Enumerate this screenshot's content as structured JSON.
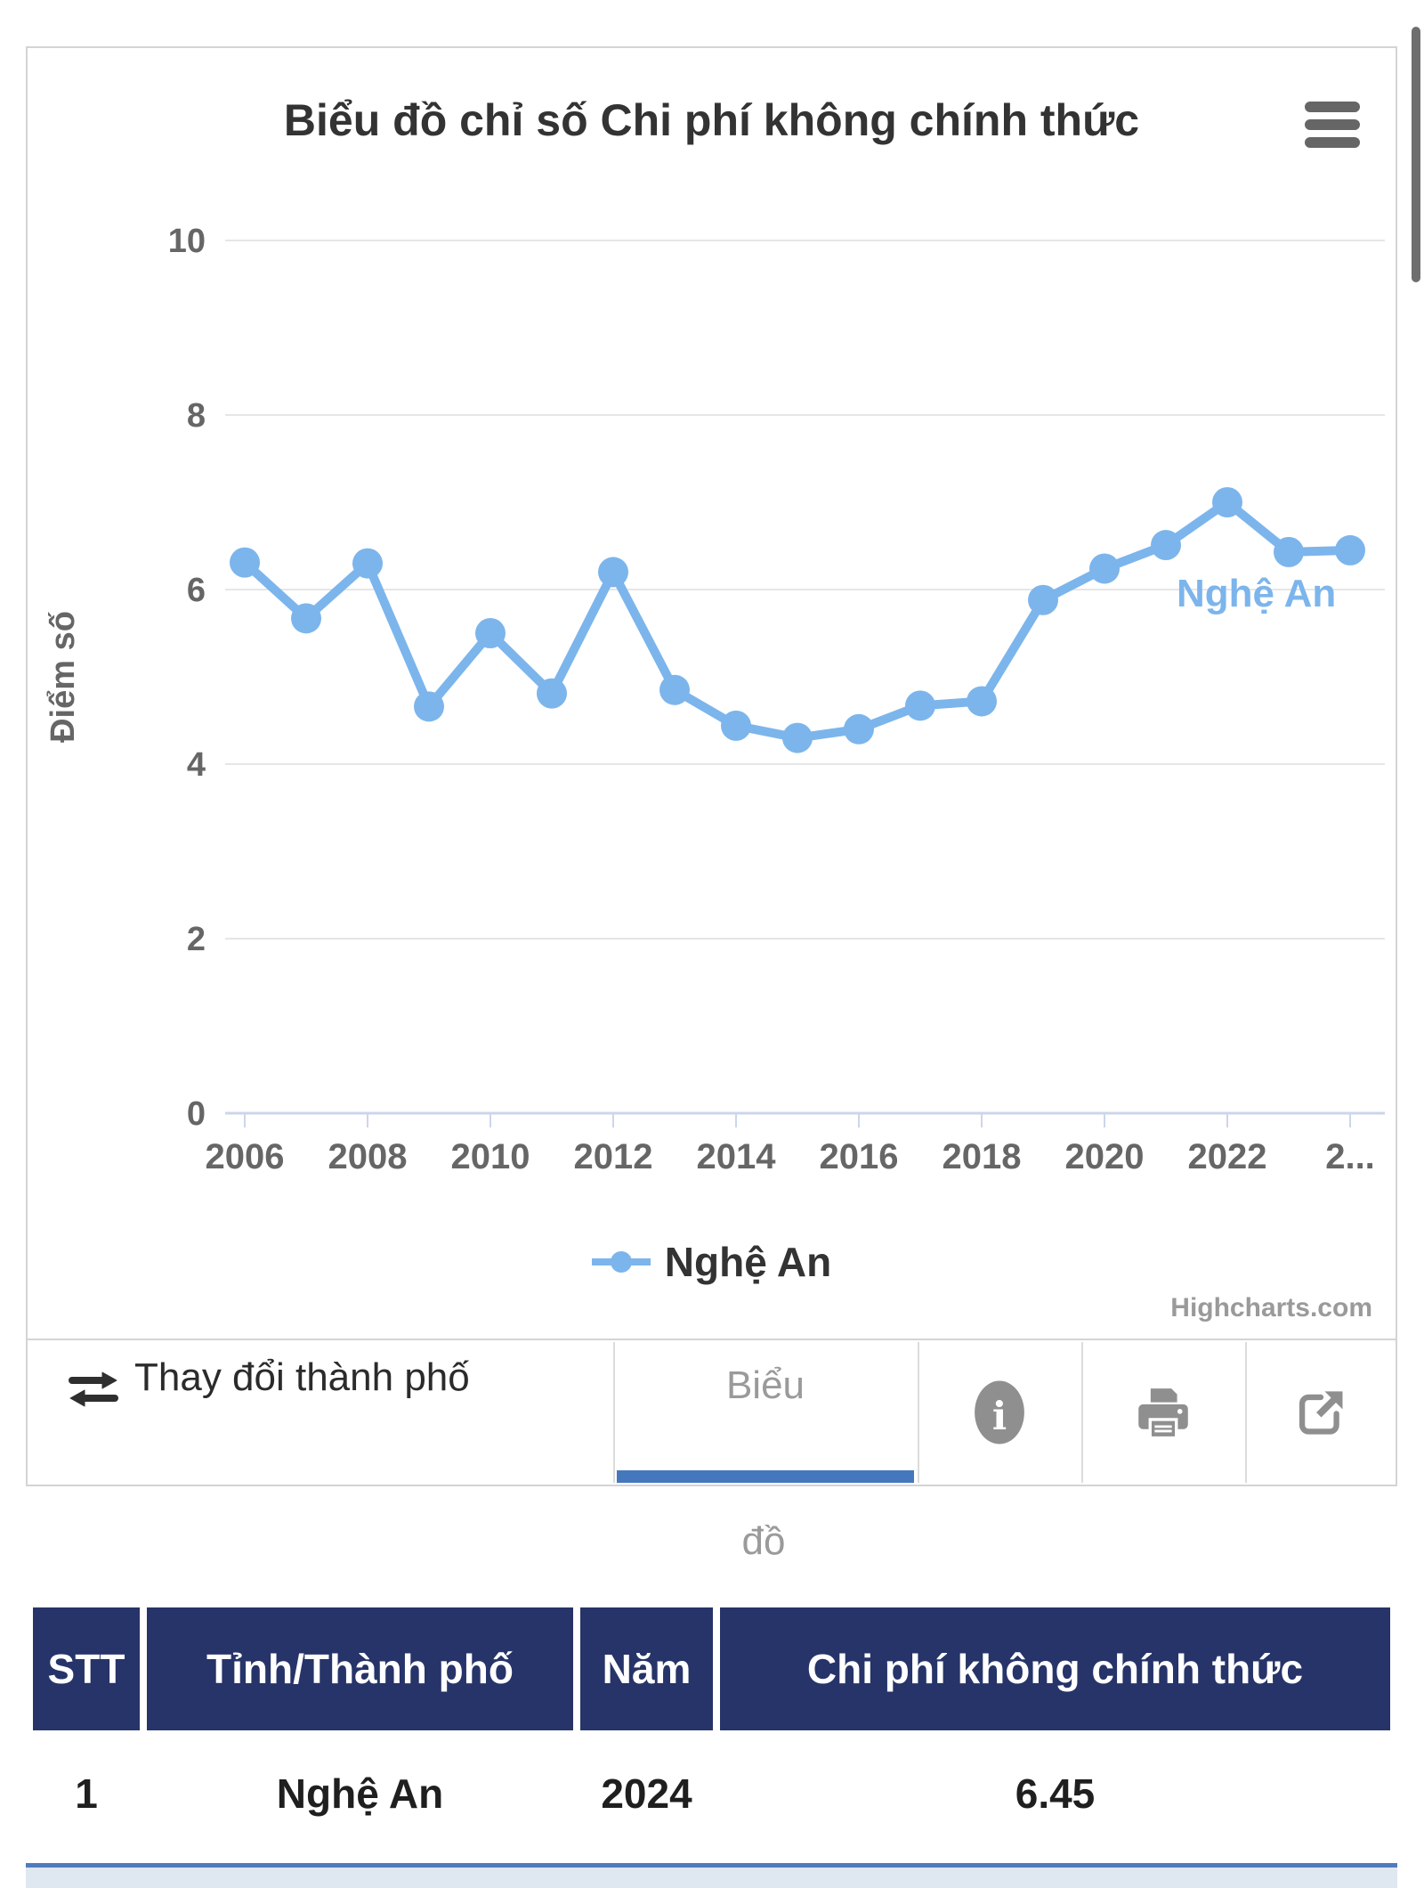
{
  "chart": {
    "title": "Biểu đồ chỉ số Chi phí không chính thức",
    "series_label": "Nghệ An",
    "legend_label": "Nghệ An",
    "credit": "Highcharts.com"
  },
  "chart_data": {
    "type": "line",
    "title": "Biểu đồ chỉ số Chi phí không chính thức",
    "xlabel": "",
    "ylabel": "Điểm số",
    "ylim": [
      0,
      10
    ],
    "grid": true,
    "legend_position": "bottom",
    "x": [
      2006,
      2007,
      2008,
      2009,
      2010,
      2011,
      2012,
      2013,
      2014,
      2015,
      2016,
      2017,
      2018,
      2019,
      2020,
      2021,
      2022,
      2023,
      2024
    ],
    "series": [
      {
        "name": "Nghệ An",
        "color": "#7cb5ec",
        "values": [
          6.31,
          5.67,
          6.3,
          4.66,
          5.5,
          4.81,
          6.2,
          4.85,
          4.44,
          4.3,
          4.4,
          4.67,
          4.72,
          5.88,
          6.24,
          6.51,
          7.0,
          6.43,
          6.45
        ]
      }
    ],
    "yticks": [
      0,
      2,
      4,
      6,
      8,
      10
    ],
    "xticks": [
      2006,
      2008,
      2010,
      2012,
      2014,
      2016,
      2018,
      2020,
      2022,
      2024
    ],
    "xtick_labels": [
      "2006",
      "2008",
      "2010",
      "2012",
      "2014",
      "2016",
      "2018",
      "2020",
      "2022",
      "2..."
    ]
  },
  "toolbar": {
    "change_city_label": "Thay đổi thành phố",
    "swap_icon": "swap-arrows-icon",
    "tab": {
      "label": "Biểu đồ",
      "label_lines": [
        "Biểu",
        "đồ"
      ],
      "active": true
    },
    "icons": [
      "info-icon",
      "print-icon",
      "external-link-icon"
    ]
  },
  "table": {
    "headers": [
      "STT",
      "Tỉnh/Thành phố",
      "Năm",
      "Chi phí không chính thức"
    ],
    "rows": [
      [
        "1",
        "Nghệ An",
        "2024",
        "6.45"
      ]
    ]
  },
  "colors": {
    "series": "#7cb5ec",
    "grid_line": "#e6e6e6",
    "axis_line": "#ccd6eb",
    "axis_text": "#666666",
    "title_text": "#333333",
    "tab_underline": "#4577bd",
    "icon_gray": "#8f8f8f",
    "table_header_bg": "#263469",
    "bottom_line": "#4f7cba",
    "bottom_band": "#dfe7f1",
    "card_border": "#d4d4d4",
    "scrollbar": "#6e6e6e"
  }
}
